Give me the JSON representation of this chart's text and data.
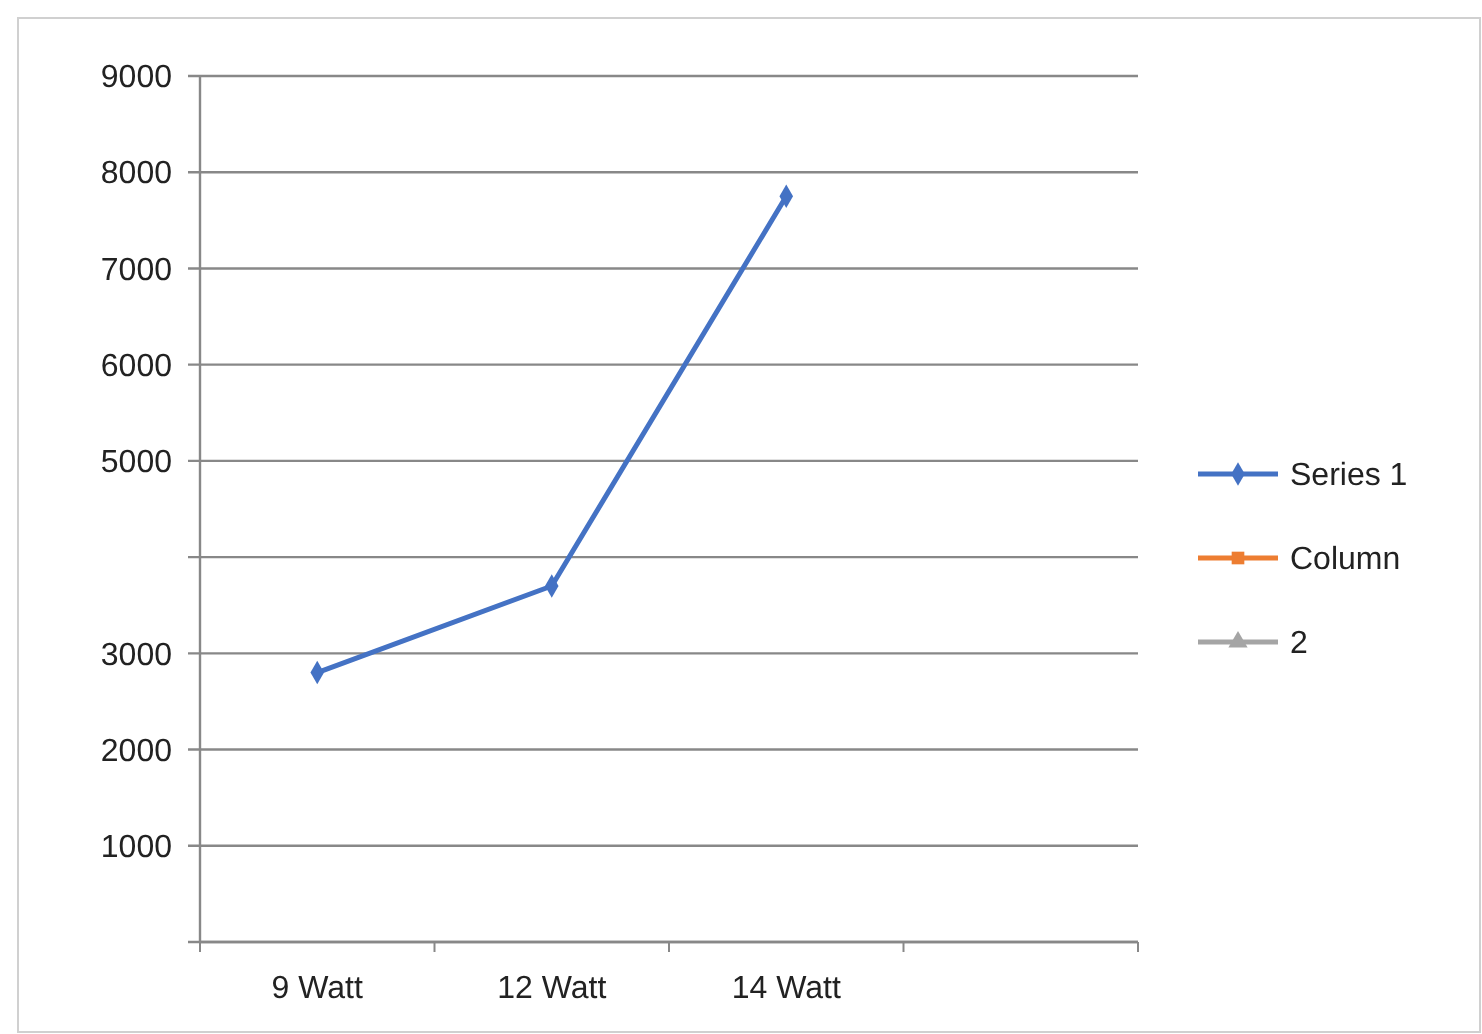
{
  "chart_data": {
    "type": "line",
    "categories": [
      "9 Watt",
      "12 Watt",
      "14 Watt",
      null
    ],
    "series": [
      {
        "name": "Series 1",
        "color": "#4472c4",
        "marker": "diamond",
        "values": [
          2800,
          3700,
          7750,
          null
        ]
      },
      {
        "name": "Column",
        "color": "#ed7d31",
        "marker": "square",
        "values": [
          null,
          null,
          null,
          null
        ]
      },
      {
        "name": "2",
        "color": "#a5a5a5",
        "marker": "triangle",
        "values": [
          null,
          null,
          null,
          null
        ]
      }
    ],
    "ylim": [
      0,
      9000
    ],
    "yticks": [
      {
        "value": 0,
        "label": null
      },
      1000,
      2000,
      3000,
      {
        "value": 4000,
        "label": null
      },
      5000,
      6000,
      7000,
      8000,
      9000
    ],
    "grid": "y",
    "legend": "right"
  }
}
